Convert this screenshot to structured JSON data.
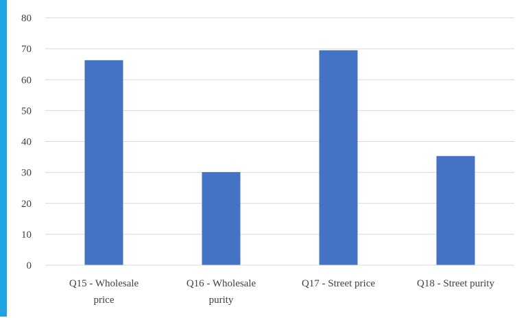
{
  "colors": {
    "accent": "#1fa3e3",
    "bar": "#4472c4",
    "grid": "#d9d9d9",
    "text": "#404040"
  },
  "chart_data": {
    "type": "bar",
    "title": "",
    "xlabel": "",
    "ylabel": "",
    "categories": [
      [
        "Q15 - Wholesale",
        "price"
      ],
      [
        "Q16 - Wholesale",
        "purity"
      ],
      [
        "Q17 - Street price"
      ],
      [
        "Q18 - Street purity"
      ]
    ],
    "values": [
      66.3,
      30.1,
      69.5,
      35.3
    ],
    "ylim": [
      0,
      80
    ],
    "yticks": [
      0,
      10,
      20,
      30,
      40,
      50,
      60,
      70,
      80
    ],
    "grid": true,
    "legend": "none"
  }
}
